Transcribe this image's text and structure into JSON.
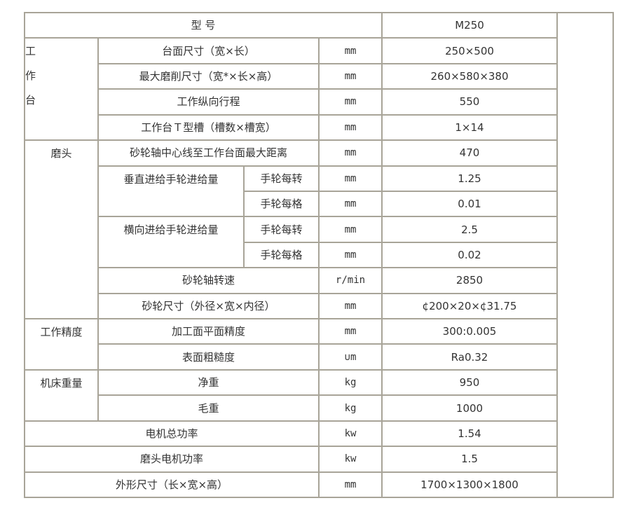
{
  "header": {
    "label": "型 号",
    "model": "M250"
  },
  "worktable": {
    "group_chars": [
      "工",
      "作",
      "台"
    ],
    "rows": [
      {
        "item": "台面尺寸（宽×长）",
        "unit": "mm",
        "value": "250×500"
      },
      {
        "item": "最大磨削尺寸（宽*×长×高）",
        "unit": "mm",
        "value": "260×580×380"
      },
      {
        "item": "工作纵向行程",
        "unit": "mm",
        "value": "550"
      },
      {
        "item": "工作台Ｔ型槽（槽数×槽宽）",
        "unit": "mm",
        "value": "1×14"
      }
    ]
  },
  "grinding_head": {
    "group": "磨头",
    "max_distance": {
      "item": "砂轮轴中心线至工作台面最大距离",
      "unit": "mm",
      "value": "470"
    },
    "vertical_feed": {
      "item": "垂直进给手轮进给量",
      "per_turn": {
        "sub": "手轮每转",
        "unit": "mm",
        "value": "1.25"
      },
      "per_div": {
        "sub": "手轮每格",
        "unit": "mm",
        "value": "0.01"
      }
    },
    "cross_feed": {
      "item": "横向进给手轮进给量",
      "per_turn": {
        "sub": "手轮每转",
        "unit": "mm",
        "value": "2.5"
      },
      "per_div": {
        "sub": "手轮每格",
        "unit": "mm",
        "value": "0.02"
      }
    },
    "spindle_speed": {
      "item": "砂轮轴转速",
      "unit": "r/min",
      "value": "2850"
    },
    "wheel_size": {
      "item": "砂轮尺寸（外径×宽×内径）",
      "unit": "mm",
      "value": "¢200×20×¢31.75"
    }
  },
  "accuracy": {
    "group": "工作精度",
    "flatness": {
      "item": "加工面平面精度",
      "unit": "mm",
      "value": "300:0.005"
    },
    "roughness": {
      "item": "表面粗糙度",
      "unit": "∪m",
      "value": "Ra0.32"
    }
  },
  "weight": {
    "group": "机床重量",
    "net": {
      "item": "净重",
      "unit": "kg",
      "value": "950"
    },
    "gross": {
      "item": "毛重",
      "unit": "kg",
      "value": "1000"
    }
  },
  "motor_total": {
    "item": "电机总功率",
    "unit": "kw",
    "value": "1.54"
  },
  "head_motor": {
    "item": "磨头电机功率",
    "unit": "kw",
    "value": "1.5"
  },
  "dimensions": {
    "item": "外形尺寸（长×宽×高）",
    "unit": "mm",
    "value": "1700×1300×1800"
  }
}
